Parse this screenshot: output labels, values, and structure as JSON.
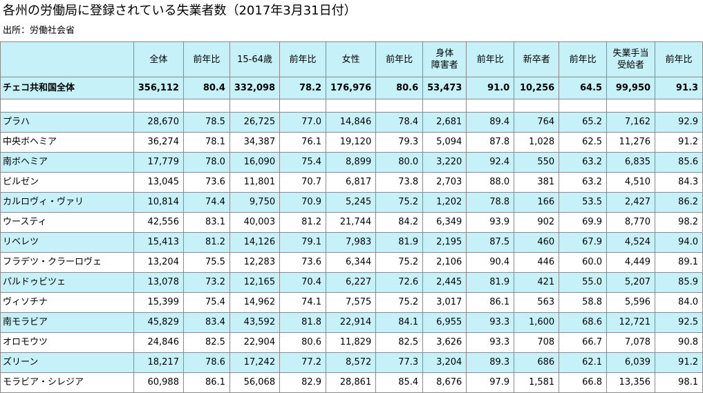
{
  "title": "各州の労働局に登録されている失業者数（2017年3月31日付）",
  "source": "出所：労働社会省",
  "colors": {
    "header_bg": "#c6f1f9",
    "row_highlight": "#c6f1f9",
    "border": "#8a8a8a"
  },
  "chart_data": {
    "type": "table",
    "title": "各州の労働局に登録されている失業者数（2017年3月31日付）",
    "columns": [
      "全体",
      "前年比",
      "15-64歳",
      "前年比",
      "女性",
      "前年比",
      "身体\n障害者",
      "前年比",
      "新卒者",
      "前年比",
      "失業手当\n受給者",
      "前年比"
    ],
    "total": {
      "region": "チェコ共和国全体",
      "values": [
        "356,112",
        "80.4",
        "332,098",
        "78.2",
        "176,976",
        "80.6",
        "53,473",
        "91.0",
        "10,256",
        "64.5",
        "99,950",
        "91.3"
      ]
    },
    "rows": [
      {
        "region": "プラハ",
        "values": [
          "28,670",
          "78.5",
          "26,725",
          "77.0",
          "14,846",
          "78.4",
          "2,681",
          "89.4",
          "764",
          "65.2",
          "7,162",
          "92.9"
        ]
      },
      {
        "region": "中央ボヘミア",
        "values": [
          "36,274",
          "78.1",
          "34,387",
          "76.1",
          "19,120",
          "79.3",
          "5,094",
          "87.8",
          "1,028",
          "62.5",
          "11,276",
          "91.2"
        ]
      },
      {
        "region": "南ボヘミア",
        "values": [
          "17,779",
          "78.0",
          "16,090",
          "75.4",
          "8,899",
          "80.0",
          "3,220",
          "92.4",
          "550",
          "63.2",
          "6,835",
          "85.6"
        ]
      },
      {
        "region": "ピルゼン",
        "values": [
          "13,045",
          "73.6",
          "11,801",
          "70.7",
          "6,817",
          "73.8",
          "2,703",
          "88.0",
          "381",
          "63.2",
          "4,510",
          "84.3"
        ]
      },
      {
        "region": "カルロヴィ・ヴァリ",
        "values": [
          "10,814",
          "74.4",
          "9,750",
          "70.9",
          "5,245",
          "75.2",
          "1,202",
          "78.8",
          "166",
          "53.5",
          "2,427",
          "86.2"
        ]
      },
      {
        "region": "ウースティ",
        "values": [
          "42,556",
          "83.1",
          "40,003",
          "81.2",
          "21,744",
          "84.2",
          "6,349",
          "93.9",
          "902",
          "69.9",
          "8,770",
          "98.2"
        ]
      },
      {
        "region": "リベレツ",
        "values": [
          "15,413",
          "81.2",
          "14,126",
          "79.1",
          "7,983",
          "81.9",
          "2,195",
          "87.5",
          "460",
          "67.9",
          "4,524",
          "94.0"
        ]
      },
      {
        "region": "フラデツ・クラーロヴェ",
        "values": [
          "13,204",
          "75.5",
          "12,283",
          "73.6",
          "6,344",
          "75.2",
          "2,106",
          "90.4",
          "446",
          "60.0",
          "4,449",
          "89.1"
        ]
      },
      {
        "region": "パルドゥビツェ",
        "values": [
          "13,078",
          "73.2",
          "12,165",
          "70.4",
          "6,227",
          "72.6",
          "2,445",
          "81.9",
          "421",
          "55.0",
          "5,207",
          "85.9"
        ]
      },
      {
        "region": "ヴィソチナ",
        "values": [
          "15,399",
          "75.4",
          "14,962",
          "74.1",
          "7,575",
          "75.2",
          "3,017",
          "86.1",
          "563",
          "58.8",
          "5,596",
          "84.0"
        ]
      },
      {
        "region": "南モラビア",
        "values": [
          "45,829",
          "83.4",
          "43,592",
          "81.8",
          "22,914",
          "84.1",
          "6,955",
          "93.3",
          "1,600",
          "68.6",
          "12,721",
          "92.5"
        ]
      },
      {
        "region": "オロモウツ",
        "values": [
          "24,846",
          "82.5",
          "22,904",
          "80.6",
          "11,829",
          "82.5",
          "3,626",
          "93.3",
          "708",
          "66.7",
          "7,078",
          "90.8"
        ]
      },
      {
        "region": "ズリーン",
        "values": [
          "18,217",
          "78.6",
          "17,242",
          "77.2",
          "8,572",
          "77.3",
          "3,204",
          "89.3",
          "686",
          "62.1",
          "6,039",
          "91.2"
        ]
      },
      {
        "region": "モラビア・シレジア",
        "values": [
          "60,988",
          "86.1",
          "56,068",
          "82.9",
          "28,861",
          "85.4",
          "8,676",
          "97.9",
          "1,581",
          "66.8",
          "13,356",
          "98.1"
        ]
      }
    ]
  }
}
